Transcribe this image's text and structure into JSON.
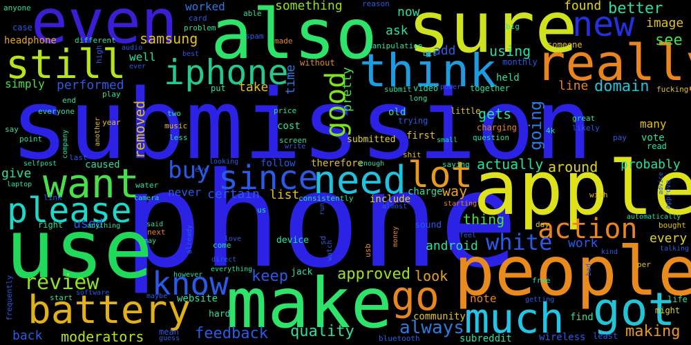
{
  "words": {
    "submission": {
      "text": "submission",
      "color": "#2b22e6"
    },
    "phone": {
      "text": "phone",
      "color": "#2b22e6"
    },
    "use": {
      "text": "use",
      "color": "#20d85a"
    },
    "people": {
      "text": "people",
      "color": "#e88a1c"
    },
    "apple": {
      "text": "apple",
      "color": "#dde21a"
    },
    "make": {
      "text": "make",
      "color": "#2ee36a"
    },
    "also": {
      "text": "also",
      "color": "#2ee36a"
    },
    "sure": {
      "text": "sure",
      "color": "#cfe21e"
    },
    "even": {
      "text": "even",
      "color": "#3a1ed6"
    },
    "still": {
      "text": "still",
      "color": "#b5e31c"
    },
    "iphone": {
      "text": "iphone",
      "color": "#25c98d"
    },
    "think": {
      "text": "think",
      "color": "#1e9ce0"
    },
    "really": {
      "text": "really",
      "color": "#e8851e"
    },
    "new": {
      "text": "new",
      "color": "#2330e0"
    },
    "want": {
      "text": "want",
      "color": "#48e04a"
    },
    "since": {
      "text": "since",
      "color": "#2a5ae8"
    },
    "need": {
      "text": "need",
      "color": "#1fc2dc"
    },
    "battery": {
      "text": "battery",
      "color": "#e2b11a"
    },
    "please": {
      "text": "please",
      "color": "#1fd7c6"
    },
    "much": {
      "text": "much",
      "color": "#1fc6e6"
    },
    "got": {
      "text": "got",
      "color": "#23c4d6"
    },
    "know": {
      "text": "know",
      "color": "#2a5ae8"
    },
    "go": {
      "text": "go",
      "color": "#e8851e"
    },
    "lot": {
      "text": "lot",
      "color": "#e89a1e"
    },
    "good": {
      "text": "good",
      "color": "#7fe21e"
    },
    "buy": {
      "text": "buy",
      "color": "#2a5ae8"
    },
    "review": {
      "text": "review",
      "color": "#8fe21e"
    },
    "action": {
      "text": "action",
      "color": "#e8851e"
    },
    "white": {
      "text": "white",
      "color": "#2a5ae8"
    },
    "going": {
      "text": "going",
      "color": "#2a7ae0"
    },
    "feedback": {
      "text": "feedback",
      "color": "#2a5ae8"
    },
    "moderators": {
      "text": "moderators",
      "color": "#b5e31c"
    },
    "quality": {
      "text": "quality",
      "color": "#28e0a0"
    },
    "always": {
      "text": "always",
      "color": "#2a7ae0"
    },
    "making": {
      "text": "making",
      "color": "#e89a1e"
    },
    "approved": {
      "text": "approved",
      "color": "#9be21e"
    },
    "look": {
      "text": "look",
      "color": "#e8a21e"
    },
    "keep": {
      "text": "keep",
      "color": "#2a5ae8"
    },
    "back": {
      "text": "back",
      "color": "#2a5ae8"
    },
    "domain": {
      "text": "domain",
      "color": "#23c4d6"
    },
    "see": {
      "text": "see",
      "color": "#48e04a"
    },
    "better": {
      "text": "better",
      "color": "#28e0a0"
    },
    "found": {
      "text": "found",
      "color": "#e2d61a"
    },
    "image": {
      "text": "image",
      "color": "#e2c21a"
    },
    "using": {
      "text": "using",
      "color": "#28e0a0"
    },
    "something": {
      "text": "something",
      "color": "#8fe21e"
    },
    "worked": {
      "text": "worked",
      "color": "#2a7ae0"
    },
    "samsung": {
      "text": "samsung",
      "color": "#e2c21a"
    },
    "performed": {
      "text": "performed",
      "color": "#2a5ae8"
    },
    "actually": {
      "text": "actually",
      "color": "#28e0a0"
    },
    "around": {
      "text": "around",
      "color": "#e2d61a"
    },
    "probably": {
      "text": "probably",
      "color": "#28e0a0"
    },
    "removed": {
      "text": "removed",
      "color": "#e2c21a"
    },
    "certain": {
      "text": "certain",
      "color": "#2a5ae8"
    },
    "list": {
      "text": "list",
      "color": "#e2c21a"
    },
    "way": {
      "text": "way",
      "color": "#e8a21e"
    },
    "thing": {
      "text": "thing",
      "color": "#48e04a"
    },
    "android": {
      "text": "android",
      "color": "#28e0a0"
    },
    "work": {
      "text": "work",
      "color": "#2a5ae8"
    },
    "every": {
      "text": "every",
      "color": "#e2d61a"
    },
    "gets": {
      "text": "gets",
      "color": "#28e0a0"
    },
    "give": {
      "text": "give",
      "color": "#28e0a0"
    },
    "used": {
      "text": "used",
      "color": "#2a5ae8"
    },
    "note": {
      "text": "note",
      "color": "#e8851e"
    },
    "take": {
      "text": "take",
      "color": "#e2c21a"
    },
    "pretty": {
      "text": "pretty",
      "color": "#48e04a"
    },
    "time": {
      "text": "time",
      "color": "#2a7ae0"
    },
    "well": {
      "text": "well",
      "color": "#28e0a0"
    },
    "ask": {
      "text": "ask",
      "color": "#28e0a0"
    },
    "now": {
      "text": "now",
      "color": "#28e0a0"
    },
    "add": {
      "text": "add",
      "color": "#2a5ae8"
    },
    "line": {
      "text": "line",
      "color": "#e8851e"
    },
    "held": {
      "text": "held",
      "color": "#28e0a0"
    },
    "community": {
      "text": "community",
      "color": "#e2c21a"
    },
    "subreddit": {
      "text": "subreddit",
      "color": "#28e0a0"
    },
    "wireless": {
      "text": "wireless",
      "color": "#2a5ae8"
    },
    "find": {
      "text": "find",
      "color": "#28e0a0"
    },
    "website": {
      "text": "website",
      "color": "#28e0a0"
    },
    "follow": {
      "text": "follow",
      "color": "#2a5ae8"
    },
    "therefore": {
      "text": "therefore",
      "color": "#e2c21a"
    },
    "cost": {
      "text": "cost",
      "color": "#28e0a0"
    },
    "caused": {
      "text": "caused",
      "color": "#28e0a0"
    },
    "headphone": {
      "text": "headphone",
      "color": "#e8a21e"
    },
    "simply": {
      "text": "simply",
      "color": "#48e04a"
    },
    "submitted": {
      "text": "submitted",
      "color": "#e2d61a"
    },
    "first": {
      "text": "first",
      "color": "#e2c21a"
    },
    "include": {
      "text": "include",
      "color": "#e2d61a"
    },
    "charge": {
      "text": "charge",
      "color": "#28e0a0"
    },
    "sound": {
      "text": "sound",
      "color": "#2a5ae8"
    },
    "device": {
      "text": "device",
      "color": "#28e0a0"
    },
    "jack": {
      "text": "jack",
      "color": "#28e0a0"
    },
    "vote": {
      "text": "vote",
      "color": "#28e0a0"
    },
    "many": {
      "text": "many",
      "color": "#e2c21a"
    },
    "read": {
      "text": "read",
      "color": "#28e0a0"
    },
    "hard": {
      "text": "hard",
      "color": "#28e0a0"
    },
    "never": {
      "text": "never",
      "color": "#2a5ae8"
    },
    "life": {
      "text": "life",
      "color": "#28e0a0"
    },
    "might": {
      "text": "might",
      "color": "#e2d61a"
    },
    "least": {
      "text": "least",
      "color": "#2a5ae8"
    },
    "bluetooth": {
      "text": "bluetooth",
      "color": "#2a5ae8"
    },
    "mean": {
      "text": "mean",
      "color": "#2a5ae8"
    },
    "guess": {
      "text": "guess",
      "color": "#2a5ae8"
    },
    "anyone": {
      "text": "anyone",
      "color": "#28e0a0"
    },
    "case": {
      "text": "case",
      "color": "#2a5ae8"
    },
    "different": {
      "text": "different",
      "color": "#28e0a0"
    },
    "card": {
      "text": "card",
      "color": "#2a5ae8"
    },
    "problem": {
      "text": "problem",
      "color": "#28e0a0"
    },
    "spam": {
      "text": "spam",
      "color": "#2a5ae8"
    },
    "made": {
      "text": "made",
      "color": "#e8851e"
    },
    "manipulation": {
      "text": "manipulation",
      "color": "#28e0a0"
    },
    "big": {
      "text": "big",
      "color": "#28e0a0"
    },
    "someone": {
      "text": "someone",
      "color": "#e2c21a"
    },
    "monthly": {
      "text": "monthly",
      "color": "#2a5ae8"
    },
    "bit": {
      "text": "bit",
      "color": "#28e0a0"
    },
    "reason": {
      "text": "reason",
      "color": "#2a5ae8"
    },
    "able": {
      "text": "able",
      "color": "#28e0a0"
    },
    "best": {
      "text": "best",
      "color": "#2a5ae8"
    },
    "ever": {
      "text": "ever",
      "color": "#2a5ae8"
    },
    "without": {
      "text": "without",
      "color": "#e8851e"
    },
    "audio": {
      "text": "audio",
      "color": "#2a5ae8"
    },
    "high": {
      "text": "high",
      "color": "#2a5ae8"
    },
    "put": {
      "text": "put",
      "color": "#28e0a0"
    },
    "submit": {
      "text": "submit",
      "color": "#28e0a0"
    },
    "video": {
      "text": "video",
      "color": "#28e0a0"
    },
    "power": {
      "text": "power",
      "color": "#2a5ae8"
    },
    "together": {
      "text": "together",
      "color": "#28e0a0"
    },
    "fucking": {
      "text": "fucking",
      "color": "#e2c21a"
    },
    "long": {
      "text": "long",
      "color": "#28e0a0"
    },
    "play": {
      "text": "play",
      "color": "#28e0a0"
    },
    "end": {
      "text": "end",
      "color": "#28e0a0"
    },
    "everyone": {
      "text": "everyone",
      "color": "#28e0a0"
    },
    "two": {
      "text": "two",
      "color": "#28e0a0"
    },
    "year": {
      "text": "year",
      "color": "#e2c21a"
    },
    "music": {
      "text": "music",
      "color": "#e2c21a"
    },
    "less": {
      "text": "less",
      "color": "#28e0a0"
    },
    "price": {
      "text": "price",
      "color": "#28e0a0"
    },
    "trying": {
      "text": "trying",
      "color": "#2a5ae8"
    },
    "old": {
      "text": "old",
      "color": "#28e0a0"
    },
    "little": {
      "text": "little",
      "color": "#e2c21a"
    },
    "great": {
      "text": "great",
      "color": "#28e0a0"
    },
    "likely": {
      "text": "likely",
      "color": "#2a5ae8"
    },
    "charging": {
      "text": "charging",
      "color": "#e8851e"
    },
    "4k": {
      "text": "4k",
      "color": "#28e0a0"
    },
    "question": {
      "text": "question",
      "color": "#28e0a0"
    },
    "pay": {
      "text": "pay",
      "color": "#2a5ae8"
    },
    "small": {
      "text": "small",
      "color": "#28e0a0"
    },
    "screen": {
      "text": "screen",
      "color": "#28e0a0"
    },
    "write": {
      "text": "write",
      "color": "#2a5ae8"
    },
    "shit": {
      "text": "shit",
      "color": "#e2c21a"
    },
    "saying": {
      "text": "saying",
      "color": "#28e0a0"
    },
    "enough": {
      "text": "enough",
      "color": "#28e0a0"
    },
    "company": {
      "text": "company",
      "color": "#28e0a0"
    },
    "another": {
      "text": "another",
      "color": "#e2c21a"
    },
    "point": {
      "text": "point",
      "color": "#28e0a0"
    },
    "say": {
      "text": "say",
      "color": "#28e0a0"
    },
    "last": {
      "text": "last",
      "color": "#2a5ae8"
    },
    "selfpost": {
      "text": "selfpost",
      "color": "#28e0a0"
    },
    "laptop": {
      "text": "laptop",
      "color": "#28e0a0"
    },
    "link": {
      "text": "link",
      "color": "#2a5ae8"
    },
    "right": {
      "text": "right",
      "color": "#28e0a0"
    },
    "eye": {
      "text": "eye",
      "color": "#2a5ae8"
    },
    "looking": {
      "text": "looking",
      "color": "#2a5ae8"
    },
    "water": {
      "text": "water",
      "color": "#28e0a0"
    },
    "camera": {
      "text": "camera",
      "color": "#28e0a0"
    },
    "anything": {
      "text": "anything",
      "color": "#28e0a0"
    },
    "said": {
      "text": "said",
      "color": "#28e0a0"
    },
    "next": {
      "text": "next",
      "color": "#e8851e"
    },
    "may": {
      "text": "may",
      "color": "#28e0a0"
    },
    "already": {
      "text": "already",
      "color": "#2a5ae8"
    },
    "us": {
      "text": "us",
      "color": "#28e0a0"
    },
    "run": {
      "text": "run",
      "color": "#2a5ae8"
    },
    "consistently": {
      "text": "consistently",
      "color": "#28e0a0"
    },
    "come": {
      "text": "come",
      "color": "#28e0a0"
    },
    "love": {
      "text": "love",
      "color": "#2a5ae8"
    },
    "direct": {
      "text": "direct",
      "color": "#2a5ae8"
    },
    "everything": {
      "text": "everything",
      "color": "#28e0a0"
    },
    "however": {
      "text": "however",
      "color": "#28e0a0"
    },
    "sd": {
      "text": "sd",
      "color": "#2a5ae8"
    },
    "watch": {
      "text": "watch",
      "color": "#2a5ae8"
    },
    "usb": {
      "text": "usb",
      "color": "#e8851e"
    },
    "money": {
      "text": "money",
      "color": "#e8851e"
    },
    "almost": {
      "text": "almost",
      "color": "#2a5ae8"
    },
    "starting": {
      "text": "starting",
      "color": "#e8851e"
    },
    "feel": {
      "text": "feel",
      "color": "#2a5ae8"
    },
    "wish": {
      "text": "wish",
      "color": "#e2c21a"
    },
    "day": {
      "text": "day",
      "color": "#e2c21a"
    },
    "automatically": {
      "text": "automatically",
      "color": "#28e0a0"
    },
    "bought": {
      "text": "bought",
      "color": "#e2c21a"
    },
    "talking": {
      "text": "talking",
      "color": "#2a5ae8"
    },
    "kind": {
      "text": "kind",
      "color": "#2a5ae8"
    },
    "per": {
      "text": "per",
      "color": "#e2c21a"
    },
    "bad": {
      "text": "bad",
      "color": "#2a5ae8"
    },
    "free": {
      "text": "free",
      "color": "#28e0a0"
    },
    "getting": {
      "text": "getting",
      "color": "#2a5ae8"
    },
    "advice": {
      "text": "advice",
      "color": "#2a5ae8"
    },
    "approve": {
      "text": "approve",
      "color": "#2a5ae8"
    },
    "maybe": {
      "text": "maybe",
      "color": "#2a5ae8"
    },
    "software": {
      "text": "software",
      "color": "#2a5ae8"
    },
    "start": {
      "text": "start",
      "color": "#28e0a0"
    },
    "frequently": {
      "text": "frequently",
      "color": "#2a5ae8"
    }
  }
}
